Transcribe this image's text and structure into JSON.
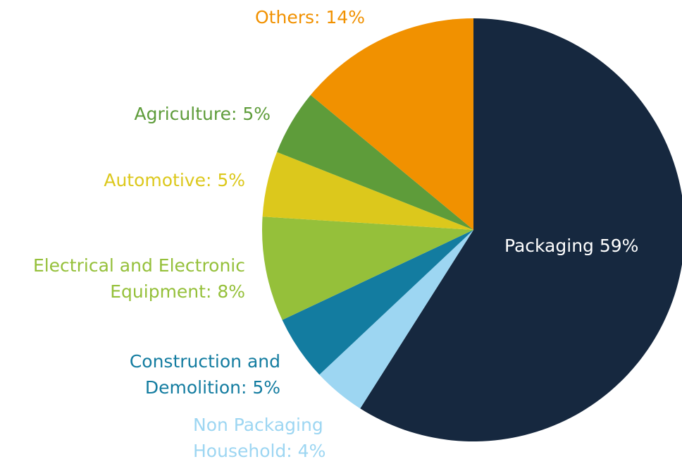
{
  "chart_data": {
    "type": "pie",
    "title": "",
    "slices": [
      {
        "label": "Packaging",
        "value": 59,
        "label_text": [
          "Packaging 59%"
        ],
        "color": "#16283f",
        "label_color": "#ffffff"
      },
      {
        "label": "Non Packaging Household",
        "value": 4,
        "label_text": [
          "Non Packaging",
          "Household: 4%"
        ],
        "color": "#9dd6f2",
        "label_color": "#9dd6f2"
      },
      {
        "label": "Construction and Demolition",
        "value": 5,
        "label_text": [
          "Construction and",
          "Demolition: 5%"
        ],
        "color": "#137ca0",
        "label_color": "#137ca0"
      },
      {
        "label": "Electrical and Electronic Equipment",
        "value": 8,
        "label_text": [
          "Electrical and Electronic",
          "Equipment: 8%"
        ],
        "color": "#95c03a",
        "label_color": "#95c03a"
      },
      {
        "label": "Automotive",
        "value": 5,
        "label_text": [
          "Automotive: 5%"
        ],
        "color": "#dcc81c",
        "label_color": "#dcc81c"
      },
      {
        "label": "Agriculture",
        "value": 5,
        "label_text": [
          "Agriculture: 5%"
        ],
        "color": "#5e9c3a",
        "label_color": "#5e9c3a"
      },
      {
        "label": "Others",
        "value": 14,
        "label_text": [
          "Others: 14%"
        ],
        "color": "#f19100",
        "label_color": "#f19100"
      }
    ],
    "start_angle": "12 o'clock",
    "direction": "clockwise",
    "legend": "none"
  }
}
